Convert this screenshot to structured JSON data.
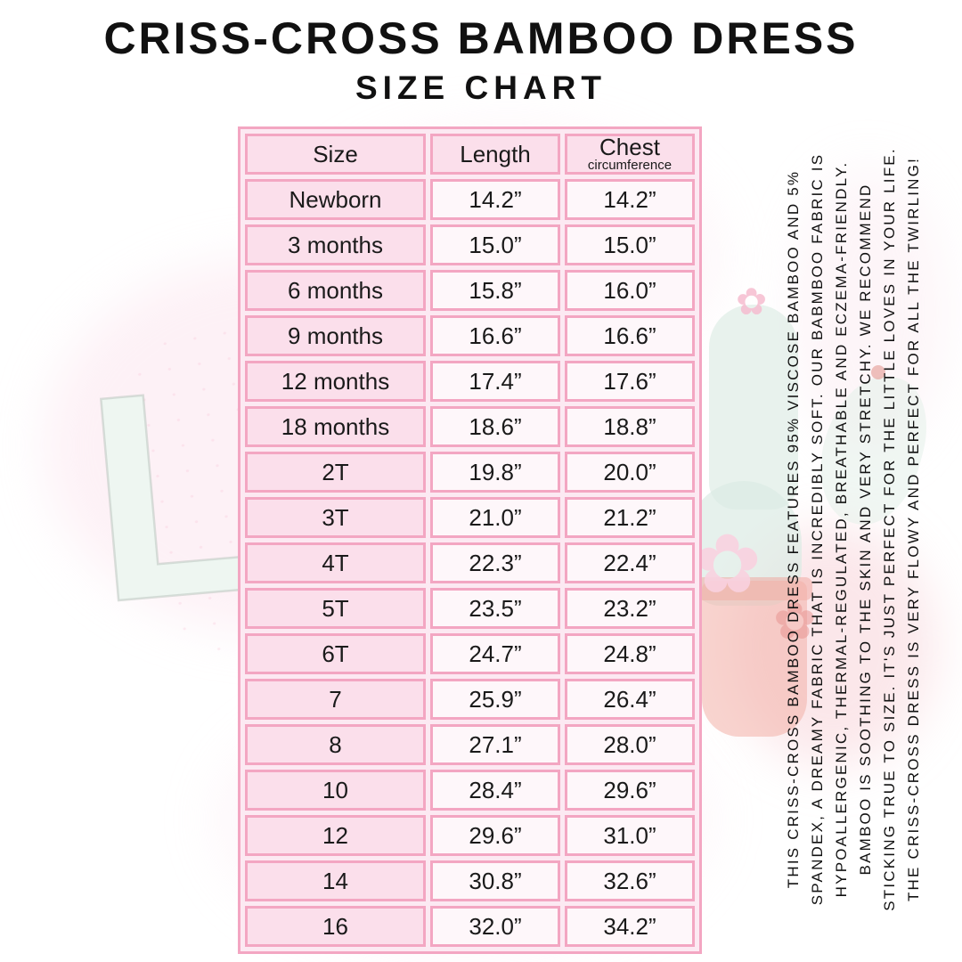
{
  "title": "CRISS-CROSS BAMBOO DRESS",
  "subtitle": "SIZE CHART",
  "chart_data": {
    "type": "table",
    "header": {
      "size": "Size",
      "length": "Length",
      "chest": "Chest",
      "chest_sub": "circumference"
    },
    "rows": [
      {
        "size": "Newborn",
        "length": "14.2”",
        "chest": "14.2”"
      },
      {
        "size": "3 months",
        "length": "15.0”",
        "chest": "15.0”"
      },
      {
        "size": "6 months",
        "length": "15.8”",
        "chest": "16.0”"
      },
      {
        "size": "9 months",
        "length": "16.6”",
        "chest": "16.6”"
      },
      {
        "size": "12 months",
        "length": "17.4”",
        "chest": "17.6”"
      },
      {
        "size": "18 months",
        "length": "18.6”",
        "chest": "18.8”"
      },
      {
        "size": "2T",
        "length": "19.8”",
        "chest": "20.0”"
      },
      {
        "size": "3T",
        "length": "21.0”",
        "chest": "21.2”"
      },
      {
        "size": "4T",
        "length": "22.3”",
        "chest": "22.4”"
      },
      {
        "size": "5T",
        "length": "23.5”",
        "chest": "23.2”"
      },
      {
        "size": "6T",
        "length": "24.7”",
        "chest": "24.8”"
      },
      {
        "size": "7",
        "length": "25.9”",
        "chest": "26.4”"
      },
      {
        "size": "8",
        "length": "27.1”",
        "chest": "28.0”"
      },
      {
        "size": "10",
        "length": "28.4”",
        "chest": "29.6”"
      },
      {
        "size": "12",
        "length": "29.6”",
        "chest": "31.0”"
      },
      {
        "size": "14",
        "length": "30.8”",
        "chest": "32.6”"
      },
      {
        "size": "16",
        "length": "32.0”",
        "chest": "34.2”"
      }
    ]
  },
  "side_text": {
    "lines": [
      "THIS CRISS-CROSS BAMBOO DRESS FEATURES 95% VISCOSE BAMBOO AND 5%",
      "SPANDEX, A DREAMY FABRIC THAT IS INCREDIBLY SOFT. OUR BABMBOO FABRIC IS",
      "HYPOALLERGENIC, THERMAL-REGULATED, BREATHABLE AND ECZEMA-FRIENDLY.",
      "BAMBOO IS SOOTHING TO THE SKIN AND VERY STRETCHY. WE RECOMMEND",
      "STICKING TRUE TO SIZE. IT'S JUST PERFECT FOR THE LITTLE LOVES IN YOUR LIFE.",
      "THE CRISS-CROSS DRESS IS VERY FLOWY AND PERFECT FOR ALL THE TWIRLING!"
    ]
  },
  "watermark": {
    "letters": "LW!",
    "flower_glyph": "✿"
  },
  "colors": {
    "border_pink": "#f3a6c2",
    "cell_pink": "#fbdfeb",
    "table_spacing_pink": "#fce9f2",
    "text_black": "#161616",
    "watermark_mint": "#eef6f1",
    "pot_salmon": "#f2b1a8"
  }
}
